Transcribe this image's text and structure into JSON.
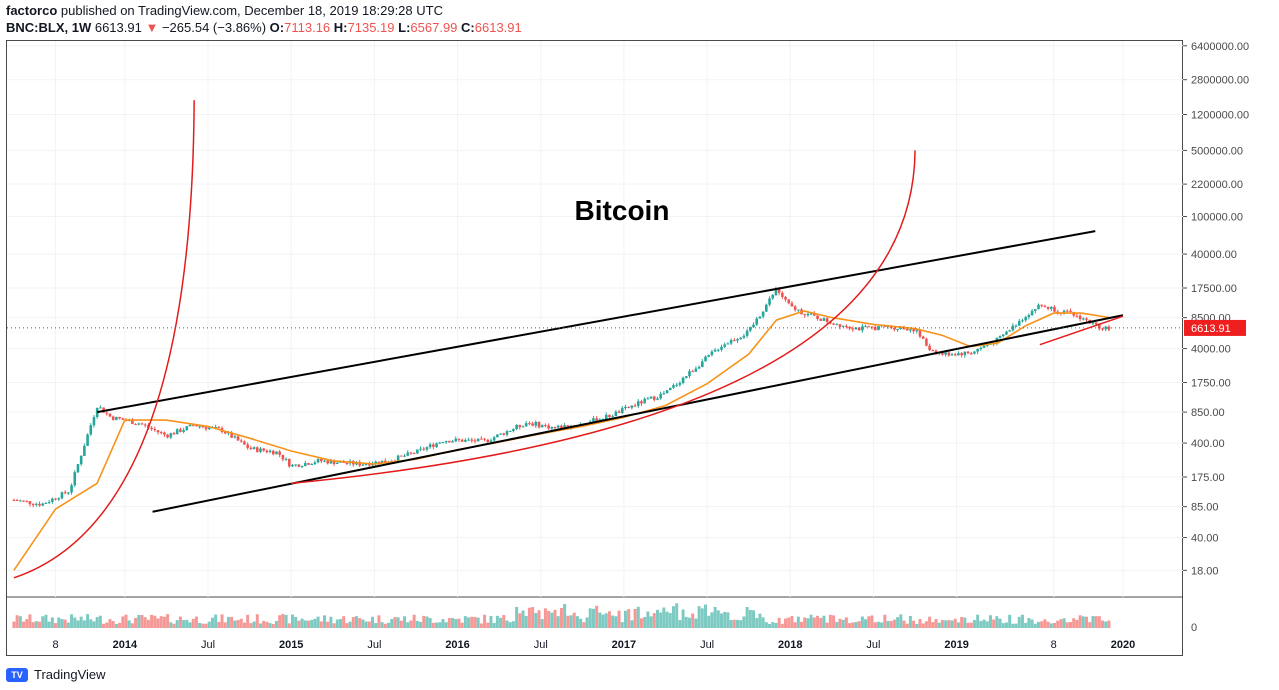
{
  "header": {
    "author": "factorco",
    "published_text": "published on TradingView.com, December 18, 2019 18:29:28 UTC",
    "symbol": "BNC:BLX, 1W",
    "price": "6613.91",
    "change_arrow": "▼",
    "change": "−265.54 (−3.86%)",
    "open_label": "O:",
    "open": "7113.16",
    "high_label": "H:",
    "high": "7135.19",
    "low_label": "L:",
    "low": "6567.99",
    "close_label": "C:",
    "close": "6613.91"
  },
  "footer": {
    "brand": "TradingView",
    "logo_text": "TV"
  },
  "colors": {
    "up": "#26a69a",
    "down": "#ef5350",
    "ma": "#f7931a",
    "arc": "#e31b1b",
    "channel": "#000000",
    "price_tag": "#ef1f1f"
  },
  "chart_data": {
    "type": "line",
    "title": "Bitcoin",
    "scale": "log",
    "y_ticks": [
      "6400000.00",
      "2800000.00",
      "1200000.00",
      "500000.00",
      "220000.00",
      "100000.00",
      "40000.00",
      "17500.00",
      "8500.00",
      "4000.00",
      "1750.00",
      "850.00",
      "400.00",
      "175.00",
      "85.00",
      "40.00",
      "18.00"
    ],
    "x_ticks": [
      "8",
      "2014",
      "Jul",
      "2015",
      "Jul",
      "2016",
      "Jul",
      "2017",
      "Jul",
      "2018",
      "Jul",
      "2019",
      "8",
      "2020"
    ],
    "volume_zero_label": "0",
    "last_price_tag": "6613.91",
    "series": [
      {
        "kind": "price",
        "x": [
          "2013-05",
          "2013-07",
          "2013-09",
          "2013-11",
          "2013-12",
          "2014-02",
          "2014-04",
          "2014-06",
          "2014-08",
          "2014-10",
          "2014-12",
          "2015-01",
          "2015-03",
          "2015-06",
          "2015-08",
          "2015-10",
          "2015-12",
          "2016-03",
          "2016-06",
          "2016-08",
          "2016-10",
          "2016-12",
          "2017-02",
          "2017-04",
          "2017-06",
          "2017-08",
          "2017-10",
          "2017-12",
          "2018-01",
          "2018-02",
          "2018-04",
          "2018-06",
          "2018-08",
          "2018-10",
          "2018-11",
          "2018-12",
          "2019-02",
          "2019-04",
          "2019-06",
          "2019-07",
          "2019-08",
          "2019-09",
          "2019-10",
          "2019-11",
          "2019-12"
        ],
        "y": [
          100,
          90,
          125,
          1000,
          750,
          650,
          480,
          620,
          550,
          350,
          320,
          230,
          260,
          240,
          260,
          320,
          430,
          420,
          660,
          580,
          640,
          780,
          1050,
          1350,
          2400,
          4300,
          6000,
          17000,
          11000,
          9500,
          7500,
          6500,
          6800,
          6400,
          4000,
          3500,
          3600,
          5000,
          9000,
          11500,
          10500,
          9500,
          8500,
          7000,
          6613.91
        ]
      },
      {
        "kind": "moving-average",
        "x": [
          "2013-05",
          "2013-08",
          "2013-11",
          "2014-01",
          "2014-04",
          "2014-07",
          "2014-10",
          "2015-01",
          "2015-04",
          "2015-07",
          "2015-10",
          "2016-01",
          "2016-04",
          "2016-07",
          "2016-10",
          "2017-01",
          "2017-04",
          "2017-07",
          "2017-10",
          "2017-12",
          "2018-02",
          "2018-04",
          "2018-07",
          "2018-10",
          "2018-12",
          "2019-02",
          "2019-04",
          "2019-06",
          "2019-08",
          "2019-10",
          "2019-12"
        ],
        "y": [
          18,
          80,
          150,
          700,
          700,
          600,
          450,
          330,
          260,
          240,
          270,
          340,
          410,
          500,
          600,
          750,
          1000,
          1700,
          3500,
          8000,
          10000,
          8500,
          7200,
          6500,
          5500,
          4200,
          4600,
          7000,
          9500,
          9500,
          8500
        ]
      }
    ],
    "annotations": [
      {
        "kind": "channel-line",
        "from": [
          "2013-11",
          850
        ],
        "to": [
          "2019-11",
          70000
        ]
      },
      {
        "kind": "channel-line",
        "from": [
          "2014-03",
          75
        ],
        "to": [
          "2020-01",
          9000
        ]
      },
      {
        "kind": "parabolic-arc",
        "from": [
          "2013-05",
          15
        ],
        "to": [
          "2014-06",
          1700000
        ]
      },
      {
        "kind": "parabolic-arc",
        "from": [
          "2015-01",
          150
        ],
        "to": [
          "2018-10",
          500000
        ]
      },
      {
        "kind": "trend-line",
        "from": [
          "2019-07",
          4400
        ],
        "to": [
          "2020-01",
          8800
        ]
      }
    ]
  }
}
